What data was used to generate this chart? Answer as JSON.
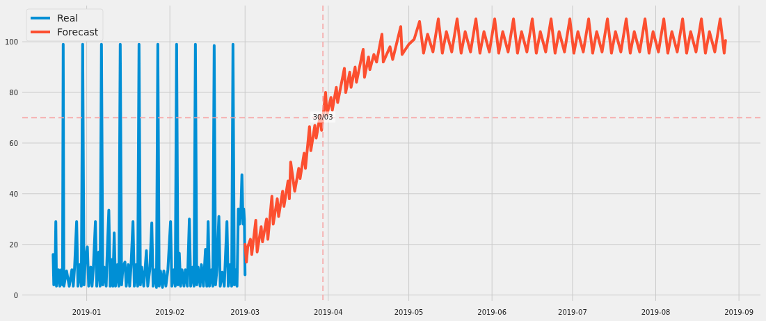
{
  "chart_data": {
    "type": "line",
    "xlim": [
      "2018-12-08",
      "2019-09-09"
    ],
    "ylim": [
      -2.3,
      114.3
    ],
    "xticks": [
      "2019-01",
      "2019-02",
      "2019-03",
      "2019-04",
      "2019-05",
      "2019-06",
      "2019-07",
      "2019-08",
      "2019-09"
    ],
    "yticks": [
      0,
      20,
      40,
      60,
      80,
      100
    ],
    "grid": true,
    "legend": "top left",
    "line_style": "solid",
    "ref_lines": [
      {
        "axis": "y",
        "value": 70,
        "color": "#f7a0a0",
        "line_style": "dashed"
      },
      {
        "axis": "x",
        "value": "2019-03-30",
        "color": "#f7a0a0",
        "line_style": "dashed"
      }
    ],
    "annotations": [
      {
        "text": "30/03",
        "x": "2019-03-30",
        "y": 70
      }
    ],
    "series": [
      {
        "name": "Real",
        "color": "#008fd5",
        "x": [
          "2018-12-19T12:00",
          "2018-12-19T18:00",
          "2018-12-20T06:00",
          "2018-12-20T12:00",
          "2018-12-20T18:00",
          "2018-12-21T12:00",
          "2018-12-22T00:00",
          "2018-12-22T12:00",
          "2018-12-23T00:00",
          "2018-12-23T06:00",
          "2018-12-23T12:00",
          "2018-12-24T12:00",
          "2018-12-25T12:00",
          "2018-12-26T12:00",
          "2018-12-27T00:00",
          "2018-12-27T12:00",
          "2018-12-28T06:00",
          "2018-12-28T18:00",
          "2018-12-29T12:00",
          "2018-12-30T00:00",
          "2018-12-30T12:00",
          "2018-12-31T00:00",
          "2018-12-31T12:00",
          "2019-01-01T06:00",
          "2019-01-01T18:00",
          "2019-01-02T12:00",
          "2019-01-03T00:00",
          "2019-01-03T12:00",
          "2019-01-04T06:00",
          "2019-01-04T18:00",
          "2019-01-05T12:00",
          "2019-01-06T00:00",
          "2019-01-06T12:00",
          "2019-01-07T00:00",
          "2019-01-07T12:00",
          "2019-01-08T06:00",
          "2019-01-08T12:00",
          "2019-01-09T06:00",
          "2019-01-09T18:00",
          "2019-01-10T06:00",
          "2019-01-10T18:00",
          "2019-01-11T06:00",
          "2019-01-11T18:00",
          "2019-01-12T12:00",
          "2019-01-13T00:00",
          "2019-01-13T12:00",
          "2019-01-14T00:00",
          "2019-01-14T12:00",
          "2019-01-15T06:00",
          "2019-01-15T18:00",
          "2019-01-16T12:00",
          "2019-01-17T00:00",
          "2019-01-17T12:00",
          "2019-01-18T06:00",
          "2019-01-18T18:00",
          "2019-01-19T12:00",
          "2019-01-20T00:00",
          "2019-01-20T12:00",
          "2019-01-21T00:00",
          "2019-01-21T12:00",
          "2019-01-22T06:00",
          "2019-01-22T18:00",
          "2019-01-23T06:00",
          "2019-01-23T18:00",
          "2019-01-24T12:00",
          "2019-01-25T06:00",
          "2019-01-25T18:00",
          "2019-01-26T12:00",
          "2019-01-27T00:00",
          "2019-01-27T12:00",
          "2019-01-28T00:00",
          "2019-01-28T12:00",
          "2019-01-29T06:00",
          "2019-01-29T18:00",
          "2019-01-30T12:00",
          "2019-01-31T06:00",
          "2019-02-01T06:00",
          "2019-02-01T18:00",
          "2019-02-02T12:00",
          "2019-02-03T00:00",
          "2019-02-03T12:00",
          "2019-02-04T00:00",
          "2019-02-04T12:00",
          "2019-02-05T00:00",
          "2019-02-05T12:00",
          "2019-02-06T06:00",
          "2019-02-06T18:00",
          "2019-02-07T12:00",
          "2019-02-08T06:00",
          "2019-02-08T18:00",
          "2019-02-09T12:00",
          "2019-02-10T00:00",
          "2019-02-10T12:00",
          "2019-02-11T00:00",
          "2019-02-11T12:00",
          "2019-02-12T06:00",
          "2019-02-12T18:00",
          "2019-02-13T12:00",
          "2019-02-14T06:00",
          "2019-02-14T18:00",
          "2019-02-15T06:00",
          "2019-02-15T18:00",
          "2019-02-16T12:00",
          "2019-02-17T00:00",
          "2019-02-17T12:00",
          "2019-02-18T00:00",
          "2019-02-18T12:00",
          "2019-02-19T06:00",
          "2019-02-19T18:00",
          "2019-02-20T12:00",
          "2019-02-21T06:00",
          "2019-02-22T06:00",
          "2019-02-22T18:00",
          "2019-02-23T12:00",
          "2019-02-24T00:00",
          "2019-02-24T12:00",
          "2019-02-25T00:00",
          "2019-02-25T12:00",
          "2019-02-26T00:00",
          "2019-02-26T12:00",
          "2019-02-27T00:00",
          "2019-02-27T12:00",
          "2019-02-27T20:00",
          "2019-02-28T06:00",
          "2019-02-28T12:00",
          "2019-02-28T18:00",
          "2019-03-01T00:00"
        ],
        "values": [
          16,
          4,
          10,
          29,
          3.5,
          10,
          3.5,
          10,
          4,
          99,
          3.5,
          9.5,
          3.5,
          10,
          3.5,
          11,
          29,
          3.5,
          12,
          3.5,
          99,
          4,
          14,
          19,
          3.5,
          11,
          3.5,
          11,
          29,
          3.5,
          17,
          3.5,
          99,
          4,
          11,
          3.5,
          12,
          33.5,
          3.5,
          14,
          3.5,
          24.5,
          3.5,
          12,
          3.5,
          99,
          4,
          11,
          13,
          3.5,
          12,
          3.5,
          11,
          29,
          3.5,
          12,
          3.5,
          99,
          4,
          11,
          3.5,
          10,
          17.5,
          3.5,
          10,
          28.5,
          3.5,
          10,
          3,
          99,
          3.5,
          9.5,
          3,
          9.5,
          3.5,
          10,
          29,
          3.5,
          10,
          3.5,
          99,
          4,
          16.5,
          3.5,
          10,
          3.5,
          10,
          3.5,
          30,
          3.5,
          11,
          3.5,
          99,
          4,
          11,
          3.5,
          12,
          3.5,
          18,
          3.5,
          29,
          3.5,
          10,
          3.5,
          98.5,
          4,
          10,
          31,
          3.5,
          9,
          3.5,
          29,
          3.5,
          12,
          3.5,
          99,
          4,
          10,
          3.5,
          34,
          28,
          35,
          47.5,
          28,
          34,
          30,
          8
        ]
      },
      {
        "name": "Forecast",
        "color": "#fc4f30",
        "x": [
          "2019-03-01T00:00",
          "2019-03-01T12:00",
          "2019-03-02T00:00",
          "2019-03-03T00:00",
          "2019-03-03T12:00",
          "2019-03-05T00:00",
          "2019-03-05T12:00",
          "2019-03-07T00:00",
          "2019-03-07T12:00",
          "2019-03-09T00:00",
          "2019-03-09T12:00",
          "2019-03-11T00:00",
          "2019-03-11T12:00",
          "2019-03-13T00:00",
          "2019-03-13T12:00",
          "2019-03-15T00:00",
          "2019-03-15T12:00",
          "2019-03-17T00:00",
          "2019-03-17T12:00",
          "2019-03-18T00:00",
          "2019-03-19T12:00",
          "2019-03-21T00:00",
          "2019-03-21T12:00",
          "2019-03-23T00:00",
          "2019-03-23T12:00",
          "2019-03-25T00:00",
          "2019-03-25T12:00",
          "2019-03-27T00:00",
          "2019-03-27T12:00",
          "2019-03-29T00:00",
          "2019-03-29T12:00",
          "2019-03-31T00:00",
          "2019-03-31T12:00",
          "2019-04-02T00:00",
          "2019-04-02T12:00",
          "2019-04-04T00:00",
          "2019-04-04T12:00",
          "2019-04-07T00:00",
          "2019-04-07T12:00",
          "2019-04-09T00:00",
          "2019-04-09T12:00",
          "2019-04-11T00:00",
          "2019-04-11T12:00",
          "2019-04-14T00:00",
          "2019-04-14T12:00",
          "2019-04-16T00:00",
          "2019-04-16T12:00",
          "2019-04-18T00:00",
          "2019-04-19T00:00",
          "2019-04-21T00:00",
          "2019-04-21T12:00",
          "2019-04-24T00:00",
          "2019-04-25T00:00",
          "2019-04-28T00:00",
          "2019-04-28T12:00",
          "2019-05-01T00:00",
          "2019-05-03T00:00",
          "2019-05-05T00:00",
          "2019-05-06T12:00",
          "2019-05-08T00:00",
          "2019-05-10T00:00",
          "2019-05-12T00:00",
          "2019-05-13T12:00",
          "2019-05-15T00:00",
          "2019-05-17T00:00",
          "2019-05-19T00:00",
          "2019-05-20T12:00",
          "2019-05-22T00:00",
          "2019-05-24T00:00",
          "2019-05-26T00:00",
          "2019-05-27T12:00",
          "2019-05-29T00:00",
          "2019-05-31T00:00",
          "2019-06-02T00:00",
          "2019-06-03T12:00",
          "2019-06-05T00:00",
          "2019-06-07T00:00",
          "2019-06-09T00:00",
          "2019-06-10T12:00",
          "2019-06-12T00:00",
          "2019-06-14T00:00",
          "2019-06-16T00:00",
          "2019-06-17T12:00",
          "2019-06-19T00:00",
          "2019-06-21T00:00",
          "2019-06-23T00:00",
          "2019-06-24T12:00",
          "2019-06-26T00:00",
          "2019-06-28T00:00",
          "2019-06-30T00:00",
          "2019-07-01T12:00",
          "2019-07-03T00:00",
          "2019-07-05T00:00",
          "2019-07-07T00:00",
          "2019-07-08T12:00",
          "2019-07-10T00:00",
          "2019-07-12T00:00",
          "2019-07-14T00:00",
          "2019-07-15T12:00",
          "2019-07-17T00:00",
          "2019-07-19T00:00",
          "2019-07-21T00:00",
          "2019-07-22T12:00",
          "2019-07-24T00:00",
          "2019-07-26T00:00",
          "2019-07-28T00:00",
          "2019-07-29T12:00",
          "2019-07-31T00:00",
          "2019-08-02T00:00",
          "2019-08-04T00:00",
          "2019-08-05T12:00",
          "2019-08-07T00:00",
          "2019-08-09T00:00",
          "2019-08-11T00:00",
          "2019-08-12T12:00",
          "2019-08-14T00:00",
          "2019-08-16T00:00",
          "2019-08-18T00:00",
          "2019-08-19T12:00",
          "2019-08-21T00:00",
          "2019-08-23T00:00",
          "2019-08-25T00:00",
          "2019-08-26T12:00",
          "2019-08-27T00:00"
        ],
        "values": [
          20,
          13,
          19,
          22,
          16,
          29.5,
          17,
          27,
          21,
          30,
          22,
          39,
          28,
          38,
          31,
          41,
          35,
          45,
          38,
          52.5,
          41,
          50,
          46,
          56,
          50,
          66.5,
          57,
          67,
          62,
          71,
          65,
          80,
          71,
          78,
          73,
          82,
          76,
          89.5,
          80,
          88,
          82,
          90,
          84,
          97,
          86,
          94,
          89,
          95,
          92,
          103,
          92,
          98,
          93,
          106,
          95,
          99,
          101,
          108,
          95.5,
          103,
          96,
          109,
          95.5,
          104,
          96,
          109,
          95.5,
          104,
          96,
          109,
          95.5,
          104,
          96,
          109,
          95.5,
          104,
          96,
          109,
          95.5,
          104,
          96,
          109,
          95.5,
          104,
          96,
          109,
          95.5,
          104,
          96,
          109,
          95.5,
          104,
          96,
          109,
          95.5,
          104,
          96,
          109,
          95.5,
          104,
          96,
          109,
          95.5,
          104,
          96,
          109,
          95.5,
          104,
          96,
          109,
          95.5,
          104,
          96,
          109,
          95.5,
          104,
          96,
          109,
          95.5,
          104,
          96,
          109,
          95.5,
          100.5
        ]
      }
    ]
  }
}
